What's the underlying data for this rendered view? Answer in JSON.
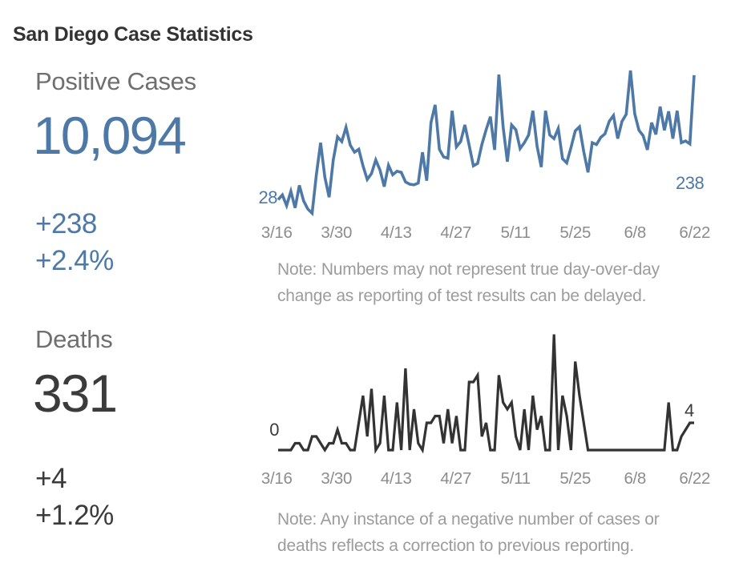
{
  "page": {
    "title": "San Diego Case Statistics"
  },
  "colors": {
    "accent_blue": "#4e79a7",
    "dark_text": "#3b3b3b",
    "kpi_label_gray": "#6f6f6f",
    "axis_tick_gray": "#8c8c8c",
    "note_gray": "#9c9c9c"
  },
  "positive_cases": {
    "label": "Positive Cases",
    "total": "10,094",
    "change_abs": "+238",
    "change_pct": "+2.4%",
    "start_label": "28",
    "end_label": "238",
    "note_line1": "Note: Numbers may not represent true day-over-day",
    "note_line2": "change as reporting of test results can be delayed."
  },
  "deaths": {
    "label": "Deaths",
    "total": "331",
    "change_abs": "+4",
    "change_pct": "+1.2%",
    "start_label": "0",
    "end_label": "4",
    "note_line1": "Note: Any instance of a negative number of cases or",
    "note_line2": "deaths reflects a correction to previous reporting."
  },
  "chart_data": [
    {
      "type": "line",
      "title": "Daily new positive cases, San Diego County",
      "x_range": [
        "3/16",
        "6/22"
      ],
      "x_ticks": [
        "3/16",
        "3/30",
        "4/13",
        "4/27",
        "5/11",
        "5/25",
        "6/8",
        "6/22"
      ],
      "ylim": [
        0,
        250
      ],
      "grid": false,
      "legend": "none",
      "line_color": "#4e79a7",
      "first_point": {
        "x": "3/16",
        "value": 28
      },
      "last_point": {
        "x": "6/22",
        "value": 238
      },
      "values": [
        28,
        36,
        18,
        42,
        14,
        52,
        26,
        12,
        5,
        70,
        124,
        66,
        32,
        95,
        134,
        126,
        150,
        120,
        108,
        113,
        85,
        62,
        72,
        95,
        78,
        50,
        86,
        70,
        76,
        74,
        58,
        54,
        53,
        56,
        108,
        60,
        158,
        188,
        113,
        100,
        98,
        178,
        117,
        126,
        154,
        120,
        85,
        89,
        121,
        146,
        168,
        112,
        239,
        151,
        92,
        154,
        146,
        114,
        124,
        137,
        178,
        118,
        83,
        178,
        137,
        131,
        148,
        97,
        90,
        116,
        144,
        151,
        109,
        74,
        124,
        121,
        133,
        139,
        160,
        170,
        131,
        160,
        172,
        246,
        173,
        145,
        136,
        112,
        158,
        138,
        185,
        145,
        177,
        131,
        178,
        124,
        127,
        122,
        238
      ]
    },
    {
      "type": "line",
      "title": "Daily deaths, San Diego County",
      "x_range": [
        "3/16",
        "6/22"
      ],
      "x_ticks": [
        "3/16",
        "3/30",
        "4/13",
        "4/27",
        "5/11",
        "5/25",
        "6/8",
        "6/22"
      ],
      "ylim": [
        0,
        17
      ],
      "grid": false,
      "legend": "none",
      "line_color": "#333333",
      "first_point": {
        "x": "3/16",
        "value": 0
      },
      "last_point": {
        "x": "6/22",
        "value": 4
      },
      "values": [
        0,
        0,
        0,
        0,
        1,
        1,
        0,
        0,
        2,
        2,
        1,
        0,
        1,
        1,
        3,
        1,
        1,
        0,
        0,
        4,
        8,
        2,
        9,
        0,
        1,
        8,
        0,
        0,
        7,
        0,
        12,
        0,
        6,
        1,
        0,
        4,
        4,
        5,
        5,
        1,
        6,
        1,
        5,
        0,
        0,
        10,
        10,
        11,
        2,
        4,
        0,
        0,
        11,
        7,
        6,
        7,
        2,
        0,
        6,
        0,
        8,
        3,
        5,
        0,
        0,
        17,
        0,
        8,
        5,
        0,
        13,
        8,
        4,
        0,
        0,
        0,
        0,
        0,
        0,
        0,
        0,
        0,
        0,
        0,
        0,
        0,
        0,
        0,
        0,
        0,
        0,
        0,
        7,
        0,
        0,
        2,
        3,
        4,
        4
      ]
    }
  ]
}
